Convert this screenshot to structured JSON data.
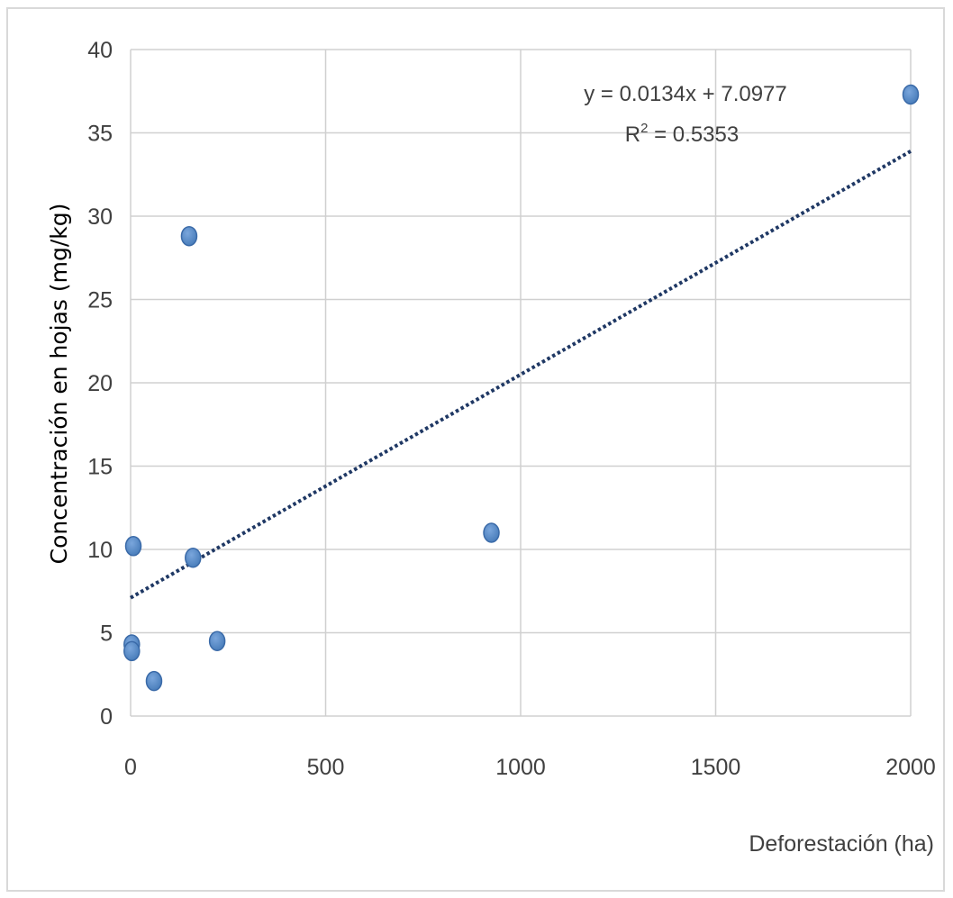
{
  "chart_data": {
    "type": "scatter",
    "title": "",
    "xlabel": "Deforestación (ha)",
    "ylabel": "Concentración en hojas (mg/kg)",
    "xlim": [
      0,
      2000
    ],
    "ylim": [
      0,
      40
    ],
    "x_ticks": [
      0,
      500,
      1000,
      1500,
      2000
    ],
    "y_ticks": [
      0,
      5,
      10,
      15,
      20,
      25,
      30,
      35,
      40
    ],
    "grid": true,
    "legend": "none",
    "series": [
      {
        "color": "#4a7ebb",
        "points": [
          {
            "x": 3,
            "y": 4.3
          },
          {
            "x": 3,
            "y": 3.9
          },
          {
            "x": 7,
            "y": 10.2
          },
          {
            "x": 60,
            "y": 2.1
          },
          {
            "x": 150,
            "y": 28.8
          },
          {
            "x": 160,
            "y": 9.5
          },
          {
            "x": 222,
            "y": 4.5
          },
          {
            "x": 925,
            "y": 11.0
          },
          {
            "x": 2000,
            "y": 37.3
          }
        ]
      }
    ],
    "trendline": {
      "type": "linear",
      "slope": 0.0134,
      "intercept": 7.0977,
      "color": "#1f3864",
      "style": "dotted",
      "equation_label": "y = 0.0134x + 7.0977",
      "r2_prefix": "R",
      "r2_superscript": "2",
      "r2_value": " = 0.5353"
    }
  }
}
